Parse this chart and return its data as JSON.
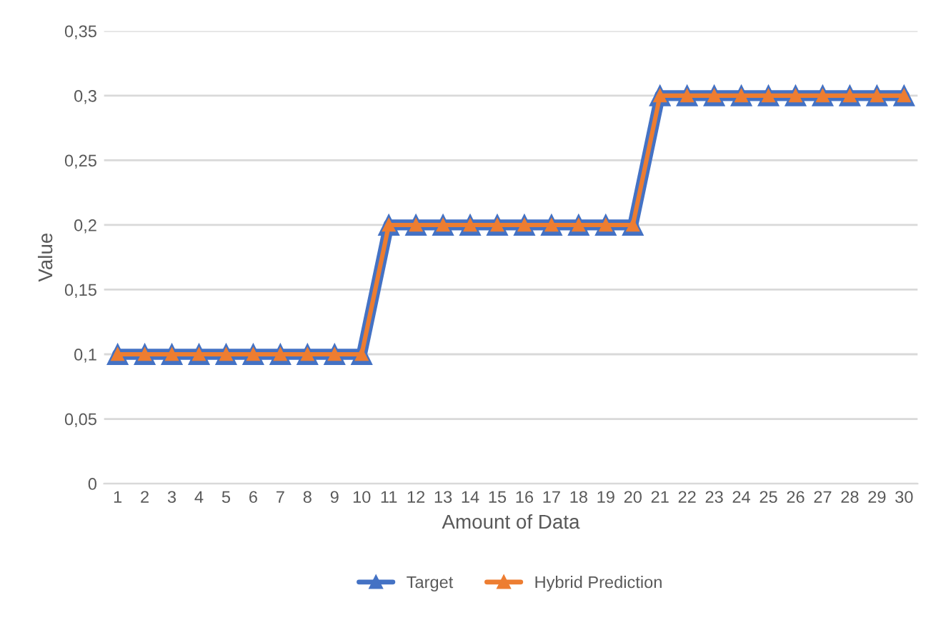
{
  "chart_data": {
    "type": "line",
    "xlabel": "Amount of Data",
    "ylabel": "Value",
    "categories": [
      "1",
      "2",
      "3",
      "4",
      "5",
      "6",
      "7",
      "8",
      "9",
      "10",
      "11",
      "12",
      "13",
      "14",
      "15",
      "16",
      "17",
      "18",
      "19",
      "20",
      "21",
      "22",
      "23",
      "24",
      "25",
      "26",
      "27",
      "28",
      "29",
      "30"
    ],
    "series": [
      {
        "name": "Target",
        "color": "#4472c4",
        "values": [
          0.1,
          0.1,
          0.1,
          0.1,
          0.1,
          0.1,
          0.1,
          0.1,
          0.1,
          0.1,
          0.2,
          0.2,
          0.2,
          0.2,
          0.2,
          0.2,
          0.2,
          0.2,
          0.2,
          0.2,
          0.3,
          0.3,
          0.3,
          0.3,
          0.3,
          0.3,
          0.3,
          0.3,
          0.3,
          0.3
        ]
      },
      {
        "name": "Hybrid Prediction",
        "color": "#ed7d31",
        "values": [
          0.1,
          0.1,
          0.1,
          0.1,
          0.1,
          0.1,
          0.1,
          0.1,
          0.1,
          0.1,
          0.2,
          0.2,
          0.2,
          0.2,
          0.2,
          0.2,
          0.2,
          0.2,
          0.2,
          0.2,
          0.3,
          0.3,
          0.3,
          0.3,
          0.3,
          0.3,
          0.3,
          0.3,
          0.3,
          0.3
        ]
      }
    ],
    "ylim": [
      0,
      0.35
    ],
    "yticks": [
      0,
      {
        "value": 0.05,
        "label": "0,05"
      },
      {
        "value": 0.1,
        "label": "0,1"
      },
      {
        "value": 0.15,
        "label": "0,15"
      },
      {
        "value": 0.2,
        "label": "0,2"
      },
      {
        "value": 0.25,
        "label": "0,25"
      },
      {
        "value": 0.3,
        "label": "0,3"
      },
      {
        "value": 0.35,
        "label": "0,35"
      }
    ],
    "grid": "y",
    "legend": "bottom",
    "marker": "triangle",
    "line_style": "solid"
  }
}
